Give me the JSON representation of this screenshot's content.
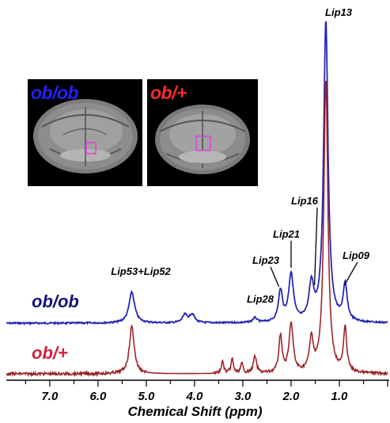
{
  "chart_data": {
    "type": "line",
    "xlabel": "Chemical Shift (ppm)",
    "xlim": [
      7.9,
      0.0
    ],
    "x_reversed": true,
    "xticks": [
      "7.0",
      "6.0",
      "5.0",
      "4.0",
      "3.0",
      "2.0",
      "1.0"
    ],
    "series": [
      {
        "name": "ob/ob",
        "color": "#2a2ad8",
        "peaks": [
          {
            "center": 5.3,
            "height": 39,
            "width": 0.07
          },
          {
            "center": 4.2,
            "height": 10,
            "width": 0.06
          },
          {
            "center": 4.05,
            "height": 11,
            "width": 0.06
          },
          {
            "center": 2.75,
            "height": 6,
            "width": 0.05
          },
          {
            "center": 2.22,
            "height": 39,
            "width": 0.05
          },
          {
            "center": 2.0,
            "height": 60,
            "width": 0.06
          },
          {
            "center": 1.58,
            "height": 45,
            "width": 0.06
          },
          {
            "center": 1.28,
            "height": 380,
            "width": 0.055
          },
          {
            "center": 0.88,
            "height": 45,
            "width": 0.05
          }
        ]
      },
      {
        "name": "ob/+",
        "color": "#c0282d",
        "peaks": [
          {
            "center": 5.3,
            "height": 60,
            "width": 0.06
          },
          {
            "center": 3.42,
            "height": 15,
            "width": 0.03
          },
          {
            "center": 3.22,
            "height": 18,
            "width": 0.03
          },
          {
            "center": 3.02,
            "height": 12,
            "width": 0.03
          },
          {
            "center": 2.75,
            "height": 21,
            "width": 0.04
          },
          {
            "center": 2.22,
            "height": 47,
            "width": 0.04
          },
          {
            "center": 2.0,
            "height": 62,
            "width": 0.05
          },
          {
            "center": 1.58,
            "height": 40,
            "width": 0.05
          },
          {
            "center": 1.28,
            "height": 372,
            "width": 0.05
          },
          {
            "center": 0.88,
            "height": 55,
            "width": 0.04
          }
        ]
      }
    ],
    "annotations": [
      {
        "text": "Lip13",
        "peak_x": 1.28
      },
      {
        "text": "Lip16",
        "peak_x": 1.58
      },
      {
        "text": "Lip21",
        "peak_x": 2.0
      },
      {
        "text": "Lip23",
        "peak_x": 2.22
      },
      {
        "text": "Lip28",
        "peak_x": 2.75
      },
      {
        "text": "Lip09",
        "peak_x": 0.88
      },
      {
        "text": "Lip53+Lip52",
        "peak_x": 5.3
      }
    ],
    "grid": false,
    "legend": "none"
  },
  "insets": [
    {
      "label": "ob/ob",
      "label_color": "#2222ff"
    },
    {
      "label": "ob/+",
      "label_color": "#ff2a2a"
    }
  ],
  "voxel_color": "#e040e0"
}
